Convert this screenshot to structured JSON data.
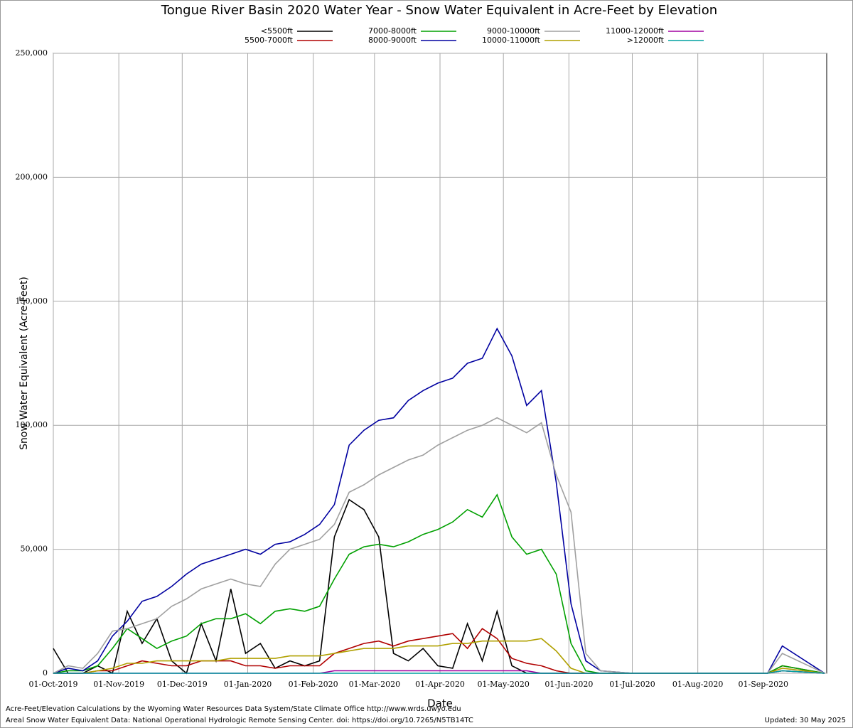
{
  "chart_data": {
    "type": "line",
    "title": "Tongue River Basin 2020 Water Year - Snow Water Equivalent in Acre-Feet by Elevation",
    "x_label": "Date",
    "y_label": "Snow Water Equivalent (Acre-Feet)",
    "footer_lines": [
      "Acre-Feet/Elevation Calculations by the Wyoming Water Resources Data System/State Climate Office http://www.wrds.uwyo.edu",
      "Areal Snow Water Equivalent Data: National Operational Hydrologic Remote Sensing Center. doi: https://doi.org/10.7265/N5TB14TC"
    ],
    "updated": "Updated: 30 May 2025",
    "grid": true,
    "xlim": [
      "2019-10-01",
      "2020-10-01"
    ],
    "xticks": [
      {
        "value": "2019-10-01",
        "label": "01-Oct-2019"
      },
      {
        "value": "2019-11-01",
        "label": "01-Nov-2019"
      },
      {
        "value": "2019-12-01",
        "label": "01-Dec-2019"
      },
      {
        "value": "2020-01-01",
        "label": "01-Jan-2020"
      },
      {
        "value": "2020-02-01",
        "label": "01-Feb-2020"
      },
      {
        "value": "2020-03-01",
        "label": "01-Mar-2020"
      },
      {
        "value": "2020-04-01",
        "label": "01-Apr-2020"
      },
      {
        "value": "2020-05-01",
        "label": "01-May-2020"
      },
      {
        "value": "2020-06-01",
        "label": "01-Jun-2020"
      },
      {
        "value": "2020-07-01",
        "label": "01-Jul-2020"
      },
      {
        "value": "2020-08-01",
        "label": "01-Aug-2020"
      },
      {
        "value": "2020-09-01",
        "label": "01-Sep-2020"
      }
    ],
    "ylim": [
      0,
      250000
    ],
    "yticks": [
      0,
      {
        "value": 50000,
        "label": "50,000"
      },
      {
        "value": 100000,
        "label": "100,000"
      },
      {
        "value": 150000,
        "label": "150,000"
      },
      {
        "value": 200000,
        "label": "200,000"
      },
      {
        "value": 250000,
        "label": "250,000"
      }
    ],
    "x": [
      "2019-10-01",
      "2019-10-08",
      "2019-10-15",
      "2019-10-22",
      "2019-10-29",
      "2019-11-05",
      "2019-11-12",
      "2019-11-19",
      "2019-11-26",
      "2019-12-03",
      "2019-12-10",
      "2019-12-17",
      "2019-12-24",
      "2019-12-31",
      "2020-01-07",
      "2020-01-14",
      "2020-01-21",
      "2020-01-28",
      "2020-02-04",
      "2020-02-11",
      "2020-02-18",
      "2020-02-25",
      "2020-03-03",
      "2020-03-10",
      "2020-03-17",
      "2020-03-24",
      "2020-03-31",
      "2020-04-07",
      "2020-04-14",
      "2020-04-21",
      "2020-04-28",
      "2020-05-05",
      "2020-05-12",
      "2020-05-19",
      "2020-05-26",
      "2020-06-02",
      "2020-06-09",
      "2020-06-16",
      "2020-07-01",
      "2020-08-01",
      "2020-08-28",
      "2020-09-03",
      "2020-09-10",
      "2020-09-30"
    ],
    "series": [
      {
        "name": "<5500ft",
        "color": "#000000",
        "values": [
          10000,
          0,
          0,
          3000,
          0,
          25000,
          12000,
          22000,
          5000,
          0,
          20000,
          5000,
          34000,
          8000,
          12000,
          2000,
          5000,
          3000,
          5000,
          55000,
          70000,
          66000,
          55000,
          8000,
          5000,
          10000,
          3000,
          2000,
          20000,
          5000,
          25000,
          3000,
          0,
          0,
          0,
          0,
          0,
          0,
          0,
          0,
          0,
          0,
          1000,
          0
        ]
      },
      {
        "name": "5500-7000ft",
        "color": "#b00000",
        "values": [
          0,
          0,
          0,
          1000,
          1000,
          3000,
          5000,
          4000,
          3000,
          3000,
          5000,
          5000,
          5000,
          3000,
          3000,
          2000,
          3000,
          3000,
          3000,
          8000,
          10000,
          12000,
          13000,
          11000,
          13000,
          14000,
          15000,
          16000,
          10000,
          18000,
          14000,
          6000,
          4000,
          3000,
          1000,
          0,
          0,
          0,
          0,
          0,
          0,
          0,
          3000,
          0
        ]
      },
      {
        "name": "7000-8000ft",
        "color": "#00a000",
        "values": [
          0,
          1000,
          1000,
          3000,
          10000,
          18000,
          14000,
          10000,
          13000,
          15000,
          20000,
          22000,
          22000,
          24000,
          20000,
          25000,
          26000,
          25000,
          27000,
          38000,
          48000,
          51000,
          52000,
          51000,
          53000,
          56000,
          58000,
          61000,
          66000,
          63000,
          72000,
          55000,
          48000,
          50000,
          40000,
          12000,
          1000,
          0,
          0,
          0,
          0,
          0,
          3000,
          0
        ]
      },
      {
        "name": "8000-9000ft",
        "color": "#0000a0",
        "values": [
          0,
          2000,
          1000,
          5000,
          15000,
          21000,
          29000,
          31000,
          35000,
          40000,
          44000,
          46000,
          48000,
          50000,
          48000,
          52000,
          53000,
          56000,
          60000,
          68000,
          92000,
          98000,
          102000,
          103000,
          110000,
          114000,
          117000,
          119000,
          125000,
          127000,
          139000,
          128000,
          108000,
          114000,
          77000,
          28000,
          5000,
          1000,
          0,
          0,
          0,
          0,
          11000,
          0
        ]
      },
      {
        "name": "9000-10000ft",
        "color": "#a0a0a0",
        "values": [
          0,
          3000,
          2000,
          8000,
          17000,
          18000,
          20000,
          22000,
          27000,
          30000,
          34000,
          36000,
          38000,
          36000,
          35000,
          44000,
          50000,
          52000,
          54000,
          60000,
          73000,
          76000,
          80000,
          83000,
          86000,
          88000,
          92000,
          95000,
          98000,
          100000,
          103000,
          100000,
          97000,
          101000,
          80000,
          65000,
          8000,
          1000,
          0,
          0,
          0,
          0,
          8000,
          0
        ]
      },
      {
        "name": "10000-11000ft",
        "color": "#b0a000",
        "values": [
          0,
          0,
          0,
          1000,
          2000,
          4000,
          4000,
          5000,
          5000,
          5000,
          5000,
          5000,
          6000,
          6000,
          6000,
          6000,
          7000,
          7000,
          7000,
          8000,
          9000,
          10000,
          10000,
          10000,
          11000,
          11000,
          11000,
          12000,
          12000,
          13000,
          13000,
          13000,
          13000,
          14000,
          9000,
          2000,
          0,
          0,
          0,
          0,
          0,
          0,
          2000,
          0
        ]
      },
      {
        "name": "11000-12000ft",
        "color": "#a000a0",
        "values": [
          0,
          0,
          0,
          0,
          0,
          0,
          0,
          0,
          0,
          0,
          0,
          0,
          0,
          0,
          0,
          0,
          0,
          0,
          0,
          1000,
          1000,
          1000,
          1000,
          1000,
          1000,
          1000,
          1000,
          1000,
          1000,
          1000,
          1000,
          1000,
          1000,
          0,
          0,
          0,
          0,
          0,
          0,
          0,
          0,
          0,
          1000,
          0
        ]
      },
      {
        "name": ">12000ft",
        "color": "#00a0a0",
        "values": [
          0,
          0,
          0,
          0,
          0,
          0,
          0,
          0,
          0,
          0,
          0,
          0,
          0,
          0,
          0,
          0,
          0,
          0,
          0,
          0,
          0,
          0,
          0,
          0,
          0,
          0,
          0,
          0,
          0,
          0,
          0,
          0,
          0,
          0,
          0,
          0,
          0,
          0,
          0,
          0,
          0,
          0,
          1000,
          0
        ]
      }
    ]
  }
}
